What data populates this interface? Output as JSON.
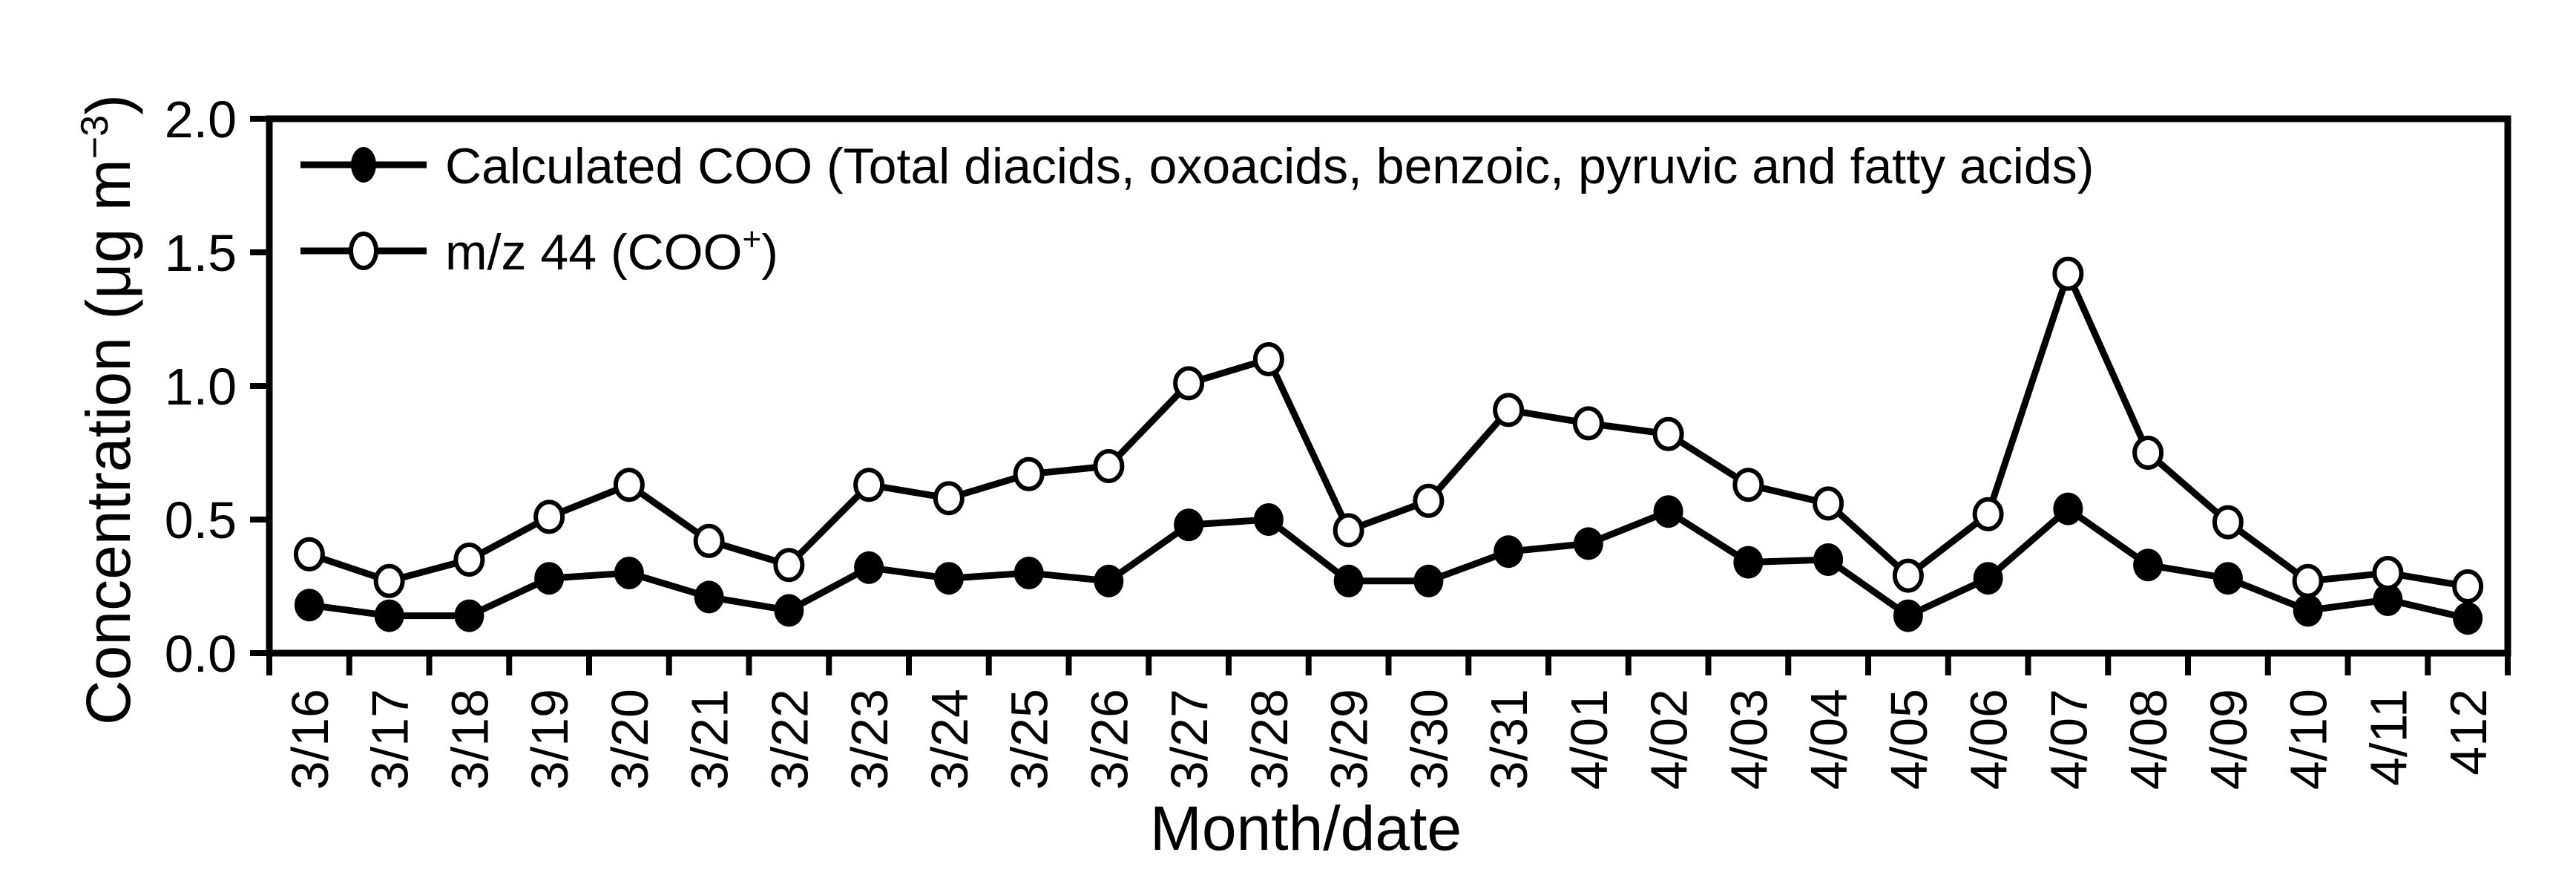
{
  "chart_data": {
    "type": "line",
    "title": "",
    "xlabel": "Month/date",
    "ylabel": "Concentration (μg m−3)",
    "ylabel_parts": {
      "prefix": "Concentration (μg m",
      "superscript": "−3",
      "suffix": ")"
    },
    "ylim": [
      0.0,
      2.0
    ],
    "yticks": [
      "0.0",
      "0.5",
      "1.0",
      "1.5",
      "2.0"
    ],
    "grid": false,
    "legend_position": "top-left-inside",
    "axis_color": "#000000",
    "background_color": "#ffffff",
    "categories": [
      "3/16",
      "3/17",
      "3/18",
      "3/19",
      "3/20",
      "3/21",
      "3/22",
      "3/23",
      "3/24",
      "3/25",
      "3/26",
      "3/27",
      "3/28",
      "3/29",
      "3/30",
      "3/31",
      "4/01",
      "4/02",
      "4/03",
      "4/04",
      "4/05",
      "4/06",
      "4/07",
      "4/08",
      "4/09",
      "4/10",
      "4/11",
      "412"
    ],
    "series": [
      {
        "name": "Calculated COO (Total diacids, oxoacids, benzoic, pyruvic and fatty acids)",
        "marker": "filled-circle",
        "color": "#000000",
        "values": [
          0.18,
          0.14,
          0.14,
          0.28,
          0.3,
          0.21,
          0.16,
          0.32,
          0.28,
          0.3,
          0.27,
          0.48,
          0.5,
          0.27,
          0.27,
          0.38,
          0.41,
          0.53,
          0.34,
          0.35,
          0.14,
          0.28,
          0.54,
          0.33,
          0.28,
          0.16,
          0.2,
          0.13
        ]
      },
      {
        "name": "m/z 44 (COO+)",
        "name_parts": {
          "prefix": "m/z 44 (COO",
          "superscript": "+",
          "suffix": ")"
        },
        "marker": "open-circle",
        "color": "#000000",
        "values": [
          0.37,
          0.27,
          0.35,
          0.51,
          0.63,
          0.42,
          0.33,
          0.63,
          0.58,
          0.67,
          0.7,
          1.01,
          1.1,
          0.46,
          0.57,
          0.91,
          0.86,
          0.82,
          0.63,
          0.56,
          0.29,
          0.52,
          1.42,
          0.75,
          0.49,
          0.27,
          0.3,
          0.25
        ]
      }
    ]
  }
}
